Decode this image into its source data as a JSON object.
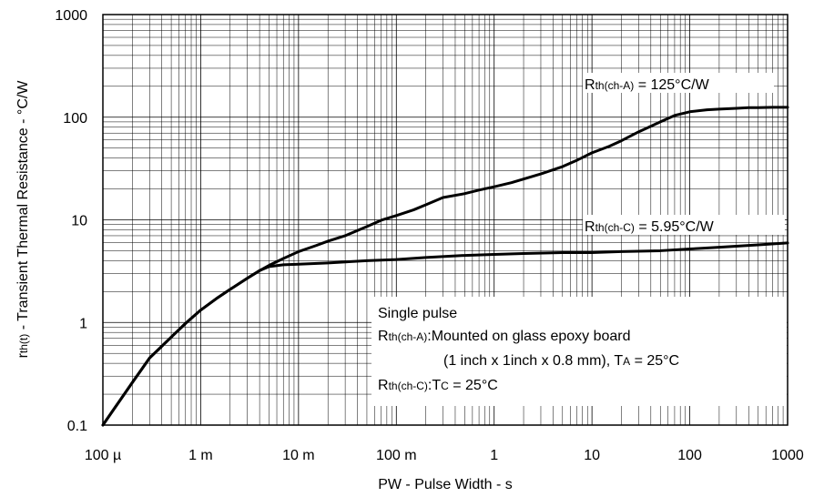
{
  "chart_data": {
    "type": "line",
    "xscale": "log",
    "yscale": "log",
    "xlim": [
      0.0001,
      1000
    ],
    "ylim": [
      0.1,
      1000
    ],
    "grid": true,
    "x_ticks": [
      {
        "value": 0.0001,
        "label": "100 µ"
      },
      {
        "value": 0.001,
        "label": "1 m"
      },
      {
        "value": 0.01,
        "label": "10 m"
      },
      {
        "value": 0.1,
        "label": "100 m"
      },
      {
        "value": 1,
        "label": "1"
      },
      {
        "value": 10,
        "label": "10"
      },
      {
        "value": 100,
        "label": "100"
      },
      {
        "value": 1000,
        "label": "1000"
      }
    ],
    "y_ticks": [
      {
        "value": 0.1,
        "label": "0.1"
      },
      {
        "value": 1,
        "label": "1"
      },
      {
        "value": 10,
        "label": "10"
      },
      {
        "value": 100,
        "label": "100"
      },
      {
        "value": 1000,
        "label": "1000"
      }
    ],
    "xlabel": "PW - Pulse Width - s",
    "ylabel": {
      "main": "r",
      "sub": "th(t)",
      "rest": " - Transient Thermal Resistance - °C/W"
    },
    "series": [
      {
        "name": {
          "main": "R",
          "sub": "th(ch-A)",
          "rest": " = 125°C/W"
        },
        "x": [
          0.0001,
          0.0002,
          0.0003,
          0.0005,
          0.0007,
          0.001,
          0.0015,
          0.002,
          0.003,
          0.004,
          0.005,
          0.007,
          0.01,
          0.015,
          0.02,
          0.03,
          0.05,
          0.07,
          0.1,
          0.15,
          0.2,
          0.3,
          0.5,
          0.7,
          1,
          1.5,
          2,
          3,
          5,
          7,
          10,
          15,
          20,
          30,
          50,
          70,
          100,
          150,
          200,
          300,
          400,
          500,
          700,
          1000
        ],
        "y": [
          0.1,
          0.26,
          0.45,
          0.72,
          0.98,
          1.32,
          1.75,
          2.1,
          2.7,
          3.2,
          3.6,
          4.2,
          4.9,
          5.6,
          6.2,
          7.0,
          8.6,
          9.9,
          11.0,
          12.5,
          14.0,
          16.5,
          18.0,
          19.5,
          21.0,
          23.0,
          25.0,
          28.0,
          33.0,
          38.0,
          45.0,
          52.0,
          59.0,
          72.0,
          90.0,
          104.0,
          113.0,
          118.0,
          120.0,
          122.0,
          124.0,
          124.0,
          125.0,
          125.0
        ]
      },
      {
        "name": {
          "main": "R",
          "sub": "th(ch-C)",
          "rest": " = 5.95°C/W"
        },
        "x": [
          0.0001,
          0.0002,
          0.0003,
          0.0005,
          0.0007,
          0.001,
          0.0015,
          0.002,
          0.003,
          0.004,
          0.005,
          0.007,
          0.01,
          0.02,
          0.05,
          0.1,
          0.2,
          0.5,
          1,
          2,
          5,
          10,
          20,
          50,
          100,
          200,
          500,
          1000
        ],
        "y": [
          0.1,
          0.26,
          0.45,
          0.72,
          0.98,
          1.32,
          1.75,
          2.1,
          2.7,
          3.2,
          3.5,
          3.65,
          3.7,
          3.8,
          4.0,
          4.1,
          4.3,
          4.5,
          4.6,
          4.7,
          4.8,
          4.8,
          4.9,
          5.0,
          5.2,
          5.4,
          5.7,
          5.95
        ]
      }
    ],
    "annotation": {
      "line1": "Single pulse",
      "line2": {
        "main": "R",
        "sub": "th(ch-A)",
        "rest": ":Mounted on glass epoxy board"
      },
      "line3": {
        "pre": "(1 inch x 1inch x 0.8 mm), T",
        "sub": "A",
        "rest": " = 25°C"
      },
      "line4": {
        "main": "R",
        "sub": "th(ch-C)",
        "mid": ":T",
        "sub2": "C",
        "rest": " = 25°C"
      }
    }
  }
}
